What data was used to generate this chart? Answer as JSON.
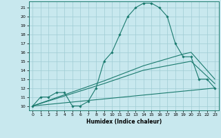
{
  "xlabel": "Humidex (Indice chaleur)",
  "xlim": [
    -0.5,
    23.5
  ],
  "ylim": [
    9.5,
    21.7
  ],
  "xticks": [
    0,
    1,
    2,
    3,
    4,
    5,
    6,
    7,
    8,
    9,
    10,
    11,
    12,
    13,
    14,
    15,
    16,
    17,
    18,
    19,
    20,
    21,
    22,
    23
  ],
  "yticks": [
    10,
    11,
    12,
    13,
    14,
    15,
    16,
    17,
    18,
    19,
    20,
    21
  ],
  "bg_color": "#c8e8ee",
  "line_color": "#1a7a6e",
  "grid_color": "#9fccd4",
  "main_x": [
    0,
    1,
    2,
    3,
    4,
    5,
    6,
    7,
    8,
    9,
    10,
    11,
    12,
    13,
    14,
    15,
    16,
    17,
    18,
    19,
    20,
    21,
    22,
    23
  ],
  "main_y": [
    10,
    11,
    11,
    11.5,
    11.5,
    10,
    10,
    10.5,
    12,
    15,
    16,
    18,
    20,
    21,
    21.5,
    21.5,
    21,
    20,
    17,
    15.5,
    15.5,
    13,
    13,
    12
  ],
  "line1_x": [
    0,
    23
  ],
  "line1_y": [
    10,
    12
  ],
  "line2_x": [
    0,
    9,
    14,
    20,
    23
  ],
  "line2_y": [
    10,
    12.5,
    14,
    15,
    12.5
  ],
  "line3_x": [
    0,
    9,
    14,
    19,
    20,
    23
  ],
  "line3_y": [
    10,
    12.8,
    14.5,
    15.8,
    16,
    13
  ]
}
